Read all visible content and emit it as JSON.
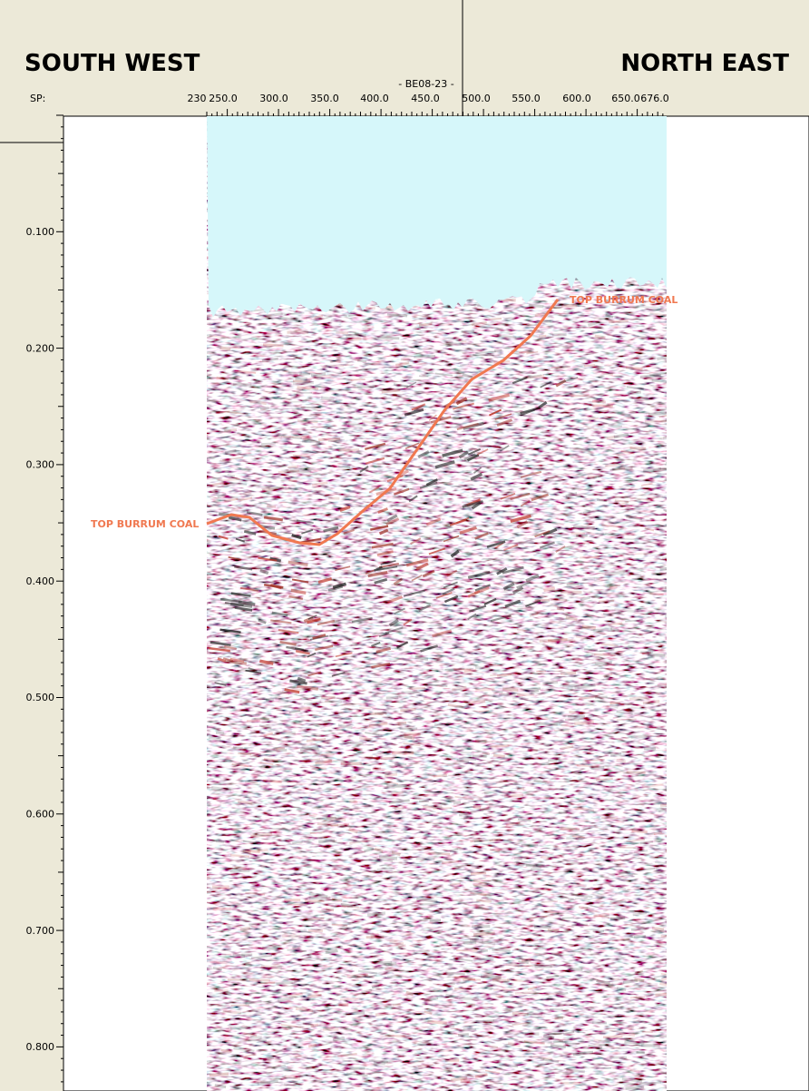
{
  "header": {
    "left_title": "SOUTH WEST",
    "right_title": "NORTH EAST"
  },
  "axis": {
    "sp_label": "SP:",
    "line_name": "- BE08-23 -",
    "x_ticks": [
      "230",
      "250.0",
      "300.0",
      "350.0",
      "400.0",
      "450.0",
      "500.0",
      "550.0",
      "600.0",
      "650.0",
      "676.0"
    ],
    "y_ticks": [
      "0.100",
      "0.200",
      "0.300",
      "0.400",
      "0.500",
      "0.600",
      "0.700",
      "0.800"
    ]
  },
  "annotations": [
    "TOP BURRUM COAL",
    "TOP BURRUM COAL"
  ]
}
